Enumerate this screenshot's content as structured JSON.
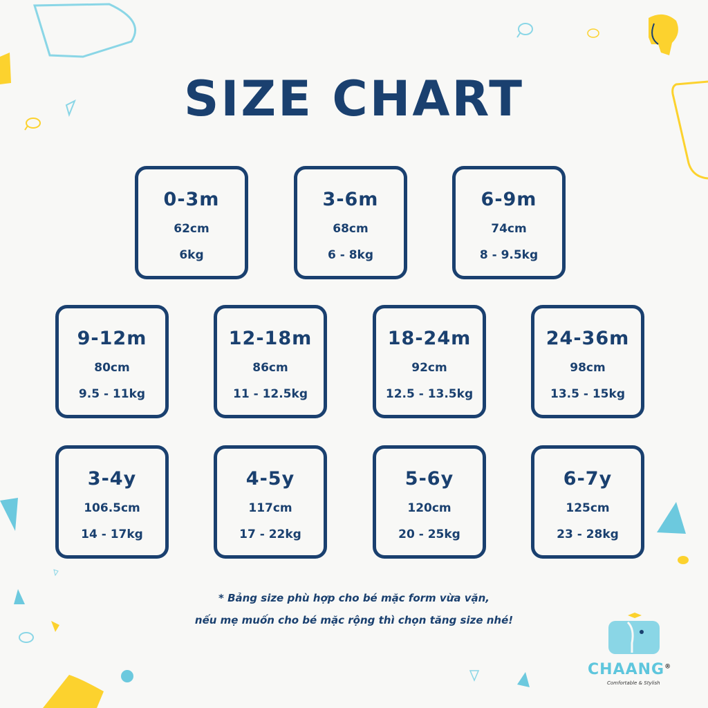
{
  "title": "SIZE CHART",
  "sizes": [
    {
      "age": "0-3m",
      "height": "62cm",
      "weight": "6kg"
    },
    {
      "age": "3-6m",
      "height": "68cm",
      "weight": "6 - 8kg"
    },
    {
      "age": "6-9m",
      "height": "74cm",
      "weight": "8 - 9.5kg"
    },
    {
      "age": "9-12m",
      "height": "80cm",
      "weight": "9.5 - 11kg"
    },
    {
      "age": "12-18m",
      "height": "86cm",
      "weight": "11 - 12.5kg"
    },
    {
      "age": "18-24m",
      "height": "92cm",
      "weight": "12.5 - 13.5kg"
    },
    {
      "age": "24-36m",
      "height": "98cm",
      "weight": "13.5 - 15kg"
    },
    {
      "age": "3-4y",
      "height": "106.5cm",
      "weight": "14 - 17kg"
    },
    {
      "age": "4-5y",
      "height": "117cm",
      "weight": "17 - 22kg"
    },
    {
      "age": "5-6y",
      "height": "120cm",
      "weight": "20 - 25kg"
    },
    {
      "age": "6-7y",
      "height": "125cm",
      "weight": "23 - 28kg"
    }
  ],
  "note": {
    "line1": "* Bảng size phù hợp cho bé mặc form vừa vặn,",
    "line2": "nếu mẹ muốn cho bé mặc rộng thì chọn tăng size nhé!"
  },
  "brand": {
    "name": "CHAANG",
    "registered": "®",
    "tagline": "Comfortable & Stylish",
    "icon": "elephant-icon"
  },
  "colors": {
    "navy": "#1a406f",
    "background": "#f8f8f6",
    "yellow": "#fcd22e",
    "cyan": "#5ec6dd"
  }
}
